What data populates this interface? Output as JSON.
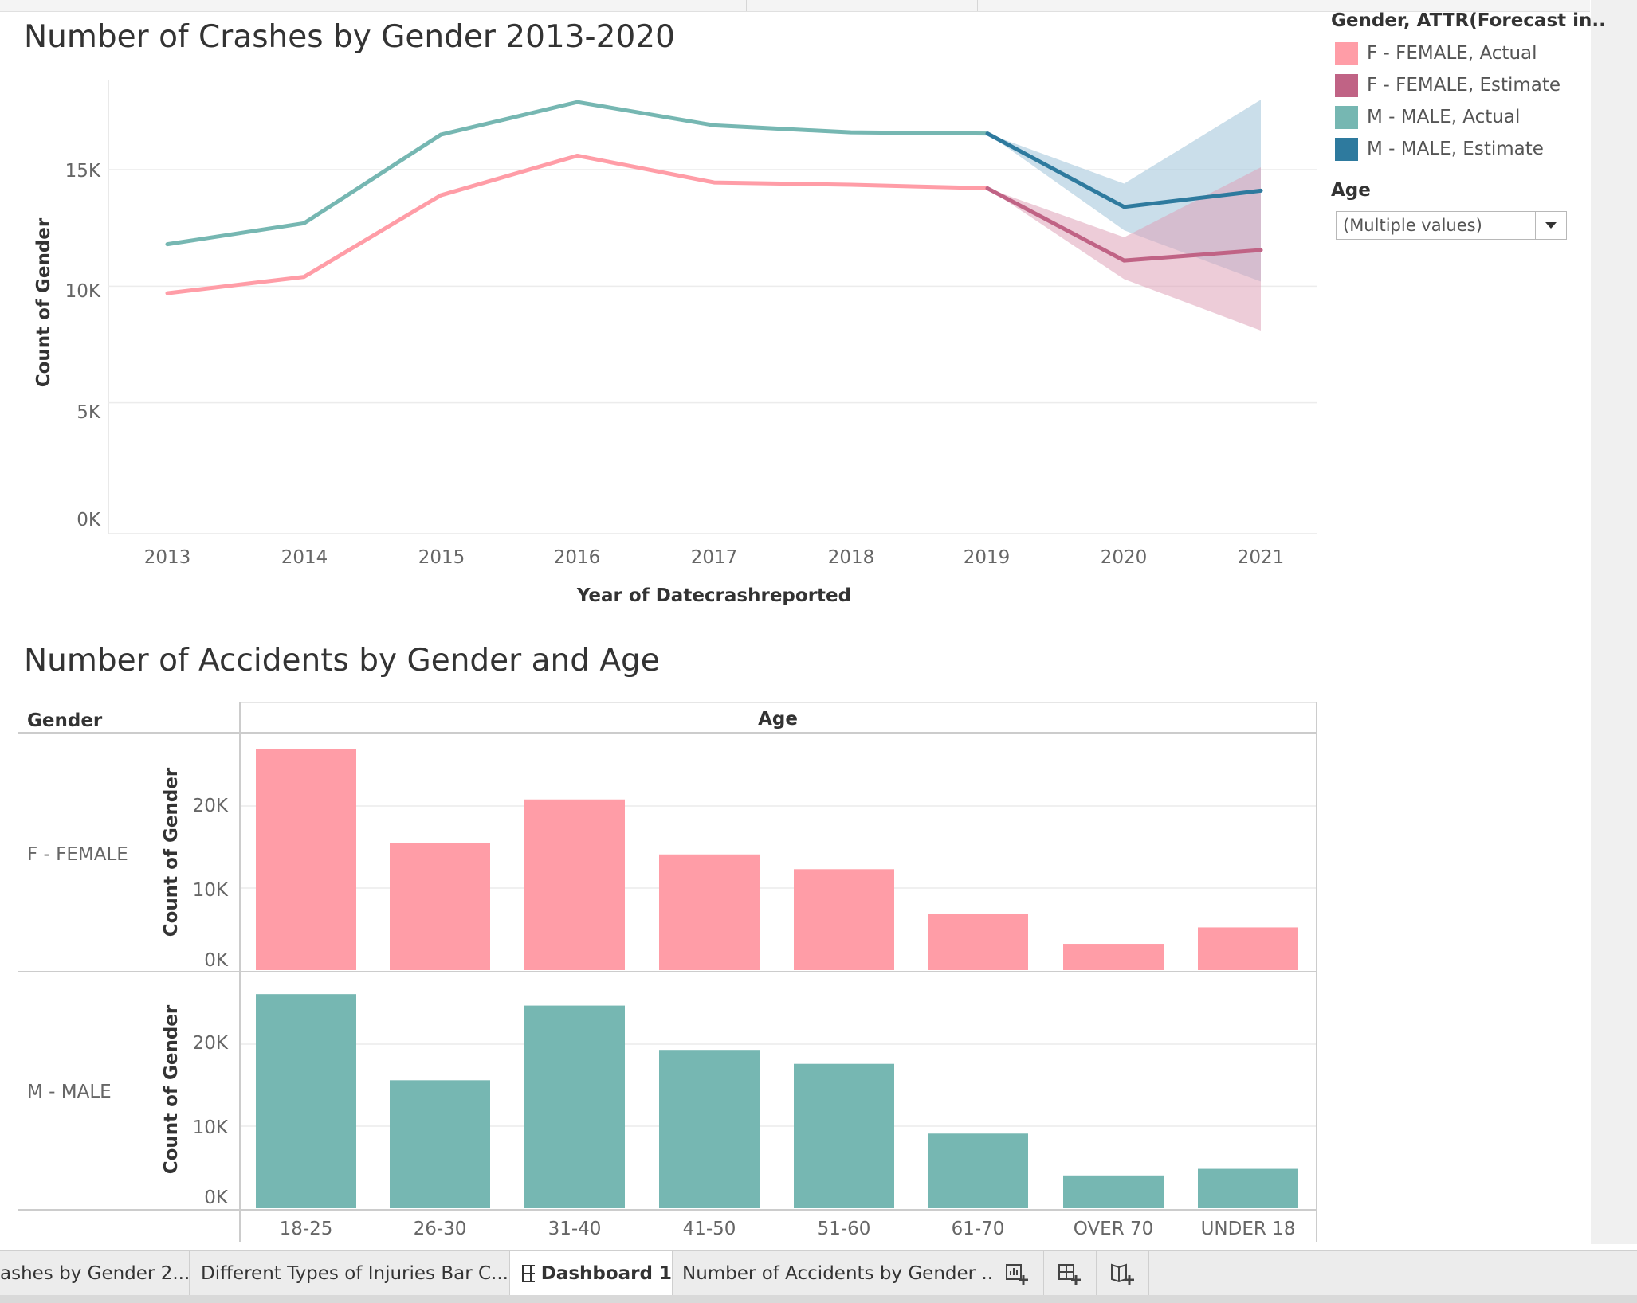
{
  "line_chart": {
    "title": "Number of Crashes by Gender 2013-2020",
    "ylabel": "Count of Gender",
    "xlabel": "Year of Datecrashreported",
    "y_ticks": [
      "15K",
      "10K",
      "5K",
      "0K"
    ],
    "x_ticks": [
      "2013",
      "2014",
      "2015",
      "2016",
      "2017",
      "2018",
      "2019",
      "2020",
      "2021"
    ]
  },
  "legend": {
    "title": "Gender, ATTR(Forecast in..",
    "items": [
      {
        "label": "F - FEMALE, Actual",
        "color": "#FF9DA7"
      },
      {
        "label": "F - FEMALE, Estimate",
        "color": "#C06385"
      },
      {
        "label": "M - MALE, Actual",
        "color": "#76B7B2"
      },
      {
        "label": "M - MALE, Estimate",
        "color": "#2E7A9E"
      }
    ]
  },
  "age_filter": {
    "label": "Age",
    "value": "(Multiple values)"
  },
  "bar_chart": {
    "title": "Number of Accidents by Gender and Age",
    "row_header": "Gender",
    "col_header": "Age",
    "ylabel": "Count of Gender",
    "rows": [
      "F - FEMALE",
      "M - MALE"
    ],
    "y_ticks": [
      "20K",
      "10K",
      "0K"
    ],
    "categories": [
      "18-25",
      "26-30",
      "31-40",
      "41-50",
      "51-60",
      "61-70",
      "OVER 70",
      "UNDER 18"
    ]
  },
  "chart_data": [
    {
      "type": "line",
      "title": "Number of Crashes by Gender 2013-2020",
      "xlabel": "Year of Datecrashreported",
      "ylabel": "Count of Gender",
      "x": [
        2013,
        2014,
        2015,
        2016,
        2017,
        2018,
        2019,
        2020,
        2021
      ],
      "ylim": [
        0,
        20000
      ],
      "grid": true,
      "legend_position": "top-right",
      "series": [
        {
          "name": "M - MALE, Actual",
          "color": "#76B7B2",
          "x": [
            2013,
            2014,
            2015,
            2016,
            2017,
            2018,
            2019
          ],
          "values": [
            11800,
            12700,
            16500,
            17900,
            16900,
            16600,
            16550
          ]
        },
        {
          "name": "F - FEMALE, Actual",
          "color": "#FF9DA7",
          "x": [
            2013,
            2014,
            2015,
            2016,
            2017,
            2018,
            2019
          ],
          "values": [
            9700,
            10400,
            13900,
            15600,
            14450,
            14350,
            14200
          ]
        },
        {
          "name": "M - MALE, Estimate",
          "color": "#2E7A9E",
          "x": [
            2019,
            2020,
            2021
          ],
          "values": [
            16550,
            13400,
            14100
          ],
          "band_upper": [
            16550,
            14400,
            18000
          ],
          "band_lower": [
            16550,
            12400,
            10200
          ],
          "band_color": "#9EC3D9"
        },
        {
          "name": "F - FEMALE, Estimate",
          "color": "#C06385",
          "x": [
            2019,
            2020,
            2021
          ],
          "values": [
            14200,
            11100,
            11550
          ],
          "band_upper": [
            14200,
            12100,
            15100
          ],
          "band_lower": [
            14200,
            10300,
            8100
          ],
          "band_color": "#DFA2B8"
        }
      ]
    },
    {
      "type": "bar",
      "title": "Number of Accidents by Gender and Age",
      "xlabel": "Age",
      "ylabel": "Count of Gender",
      "categories": [
        "18-25",
        "26-30",
        "31-40",
        "41-50",
        "51-60",
        "61-70",
        "OVER 70",
        "UNDER 18"
      ],
      "ylim": [
        0,
        28000
      ],
      "grid": true,
      "series": [
        {
          "name": "F - FEMALE",
          "color": "#FF9DA7",
          "values": [
            26900,
            15500,
            20800,
            14100,
            12300,
            6800,
            3200,
            5200
          ]
        },
        {
          "name": "M - MALE",
          "color": "#76B7B2",
          "values": [
            26100,
            15600,
            24700,
            19300,
            17600,
            9100,
            4000,
            4800
          ]
        }
      ]
    }
  ],
  "tabs": [
    {
      "label": "ashes by Gender 2...",
      "active": false
    },
    {
      "label": "Different Types of Injuries Bar C...",
      "active": false
    },
    {
      "label": "Dashboard 1",
      "active": true
    },
    {
      "label": "Number of Accidents by Gender ...",
      "active": false
    }
  ],
  "tab_icons": [
    "new-worksheet-icon",
    "new-dashboard-icon",
    "new-story-icon"
  ]
}
